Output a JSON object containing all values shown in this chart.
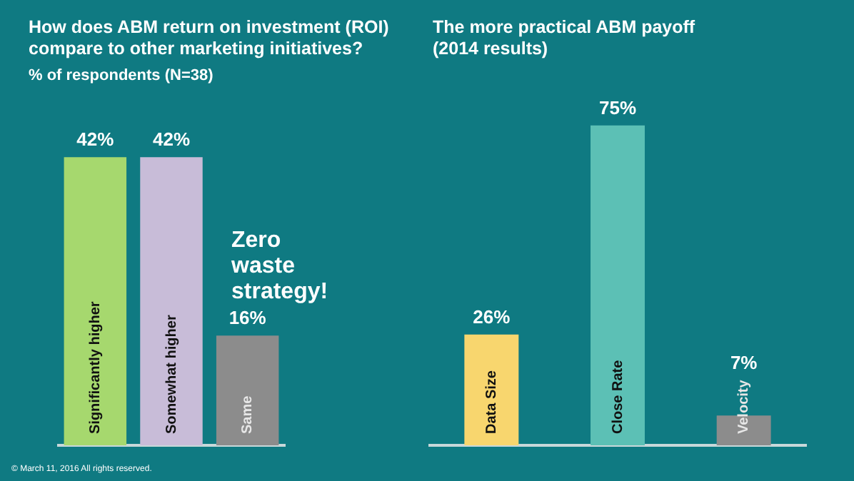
{
  "chart_data": [
    {
      "type": "bar",
      "title": "How does ABM return on investment (ROI) compare to other marketing initiatives?",
      "subtitle": "% of respondents (N=38)",
      "categories": [
        "Significantly higher",
        "Somewhat higher",
        "Same"
      ],
      "values": [
        42,
        42,
        16
      ],
      "colors": [
        "#a6d86e",
        "#c8bcd8",
        "#8c8c8c"
      ],
      "value_labels": [
        "42%",
        "42%",
        "16%"
      ],
      "annotations": [
        "Zero waste strategy!",
        "© March 11, 2016 All rights reserved."
      ]
    },
    {
      "type": "bar",
      "title": "The more practical ABM payoff (2014 results)",
      "categories": [
        "Data Size",
        "Close Rate",
        "Velocity"
      ],
      "values": [
        26,
        75,
        7
      ],
      "colors": [
        "#f8d66e",
        "#5cc0b5",
        "#8c8c8c"
      ],
      "value_labels": [
        "26%",
        "75%",
        "7%"
      ]
    }
  ]
}
